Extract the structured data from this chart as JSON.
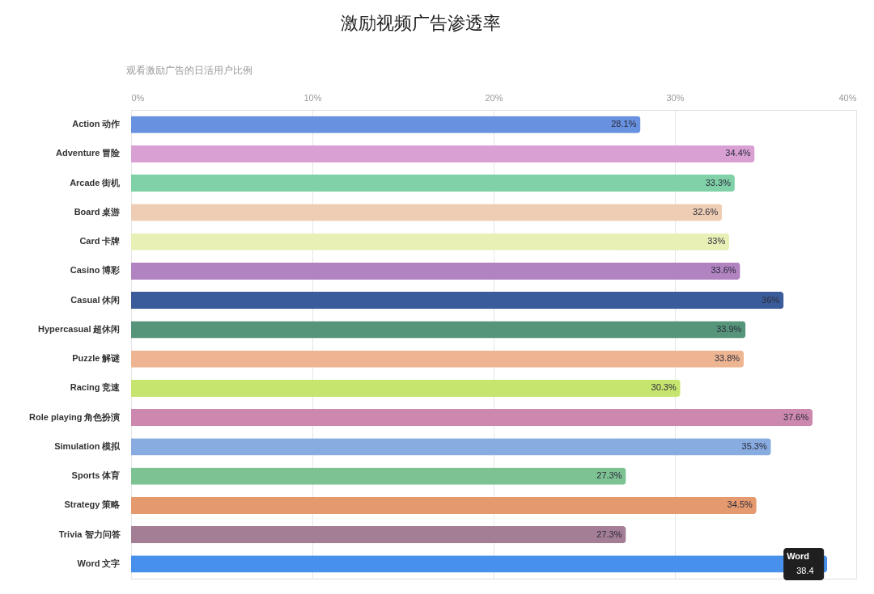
{
  "chart_data": {
    "type": "bar",
    "orientation": "horizontal",
    "title": "激励视频广告渗透率",
    "xlabel": "观看激励广告的日活用户比例",
    "categories": [
      "Action 动作",
      "Adventure 冒险",
      "Arcade 街机",
      "Board 桌游",
      "Card 卡牌",
      "Casino 博彩",
      "Casual 休闲",
      "Hypercasual 超休闲",
      "Puzzle 解谜",
      "Racing 竞速",
      "Role playing 角色扮演",
      "Simulation 模拟",
      "Sports 体育",
      "Strategy 策略",
      "Trivia 智力问答",
      "Word 文字"
    ],
    "values": [
      28.1,
      34.4,
      33.3,
      32.6,
      33,
      33.6,
      36,
      33.9,
      33.8,
      30.3,
      37.6,
      35.3,
      27.3,
      34.5,
      27.3,
      38.4
    ],
    "colors": [
      "#6891e0",
      "#d9a0d4",
      "#80d1a8",
      "#eecdb4",
      "#e8f0b6",
      "#b183c0",
      "#3b5c9a",
      "#56957a",
      "#eeb592",
      "#c6e56e",
      "#cc88ae",
      "#88abe0",
      "#7dc293",
      "#e49a6e",
      "#a47e94",
      "#4790ec"
    ],
    "xlim": [
      0,
      40
    ],
    "xticks": [
      {
        "value": 0,
        "label": "0%"
      },
      {
        "value": 10,
        "label": "10%"
      },
      {
        "value": 20,
        "label": "20%"
      },
      {
        "value": 30,
        "label": "30%"
      },
      {
        "value": 40,
        "label": "40%"
      }
    ],
    "grid": "x",
    "value_labels": [
      "28.1%",
      "34.4%",
      "33.3%",
      "32.6%",
      "33%",
      "33.6%",
      "36%",
      "33.9%",
      "33.8%",
      "30.3%",
      "37.6%",
      "35.3%",
      "27.3%",
      "34.5%",
      "27.3%",
      null
    ],
    "annotations": [
      {
        "text": "Word",
        "x": 38.4,
        "y": "Word 文字"
      },
      {
        "text": "38.4",
        "x": 38.4,
        "y": "Word 文字"
      }
    ]
  }
}
